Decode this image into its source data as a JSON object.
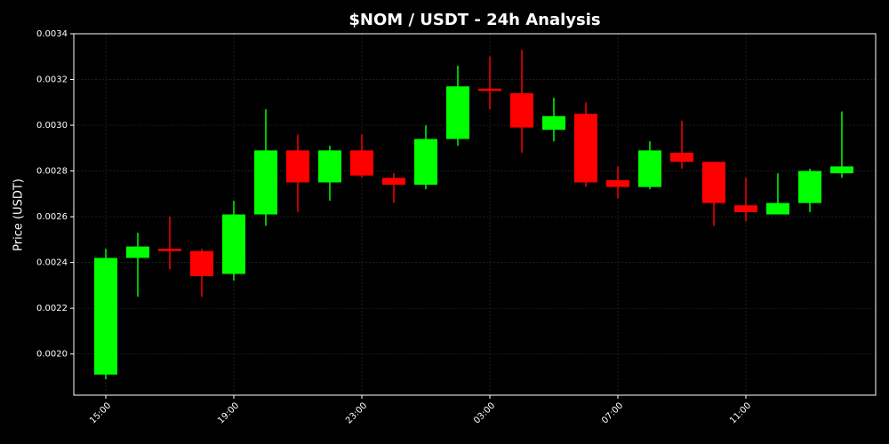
{
  "chart_data": {
    "type": "candlestick",
    "title": "$NOM / USDT - 24h Analysis",
    "y_label": "Price (USDT)",
    "categories": [
      "15:00",
      null,
      null,
      null,
      "19:00",
      null,
      null,
      null,
      "23:00",
      null,
      null,
      null,
      "03:00",
      null,
      null,
      null,
      "07:00",
      null,
      null,
      null,
      "11:00",
      null,
      null,
      null
    ],
    "open": [
      0.00191,
      0.00242,
      0.00246,
      0.00245,
      0.00235,
      0.00261,
      0.00289,
      0.00275,
      0.00289,
      0.00277,
      0.00274,
      0.00294,
      0.00316,
      0.00314,
      0.00298,
      0.00305,
      0.00276,
      0.00273,
      0.00288,
      0.00284,
      0.00265,
      0.00261,
      0.00266,
      0.00279
    ],
    "high": [
      0.00246,
      0.00253,
      0.0026,
      0.00246,
      0.00267,
      0.00307,
      0.00296,
      0.00291,
      0.00296,
      0.00279,
      0.003,
      0.00326,
      0.0033,
      0.00333,
      0.00312,
      0.0031,
      0.00282,
      0.00293,
      0.00302,
      0.00284,
      0.00277,
      0.00279,
      0.00281,
      0.00306
    ],
    "low": [
      0.00189,
      0.00225,
      0.00237,
      0.00225,
      0.00232,
      0.00256,
      0.00262,
      0.00267,
      0.00277,
      0.00266,
      0.00272,
      0.00291,
      0.00307,
      0.00288,
      0.00293,
      0.00273,
      0.00268,
      0.00272,
      0.00281,
      0.00256,
      0.00258,
      0.00261,
      0.00262,
      0.00277
    ],
    "close": [
      0.00242,
      0.00247,
      0.00245,
      0.00234,
      0.00261,
      0.00289,
      0.00275,
      0.00289,
      0.00278,
      0.00274,
      0.00294,
      0.00317,
      0.00315,
      0.00299,
      0.00304,
      0.00275,
      0.00273,
      0.00289,
      0.00284,
      0.00266,
      0.00262,
      0.00266,
      0.0028,
      0.00282
    ],
    "up_color": "#00ff00",
    "down_color": "#ff0000",
    "ylim": [
      0.00182,
      0.0034
    ],
    "yticks": [
      {
        "value": 0.002,
        "label": "0.0020"
      },
      0.0022,
      0.0024,
      0.0026,
      0.0028,
      {
        "value": 0.003,
        "label": "0.0030"
      },
      0.0032,
      0.0034
    ],
    "grid": true
  }
}
